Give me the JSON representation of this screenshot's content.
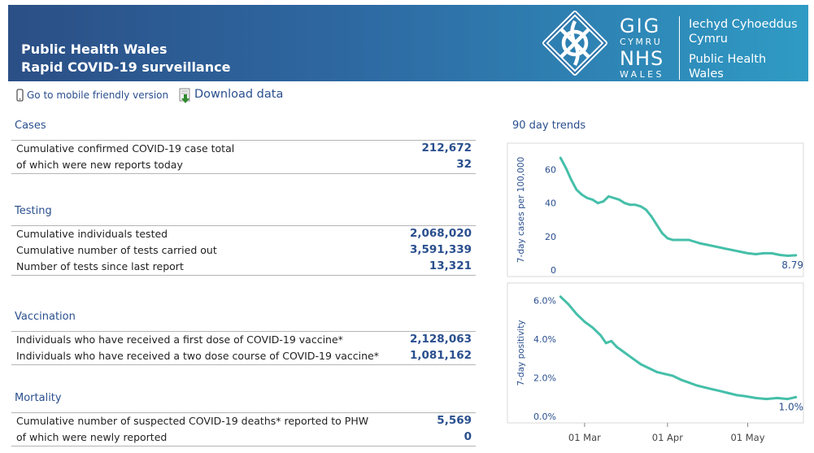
{
  "header": {
    "title_line1": "Public Health Wales",
    "title_line2": "Rapid COVID-19 surveillance",
    "logo": {
      "gig": "GIG",
      "cymru": "CYMRU",
      "nhs": "NHS",
      "wales": "WALES",
      "org_line1": "Iechyd Cyhoeddus",
      "org_line2": "Cymru",
      "org_line3": "Public Health",
      "org_line4": "Wales"
    }
  },
  "links": {
    "mobile": "Go to mobile friendly version",
    "download": "Download data"
  },
  "sections": {
    "cases": {
      "title": "Cases",
      "rows": [
        {
          "label": "Cumulative confirmed COVID-19 case total",
          "value": "212,672"
        },
        {
          "label": "of which were new reports today",
          "value": "32"
        }
      ]
    },
    "testing": {
      "title": "Testing",
      "rows": [
        {
          "label": "Cumulative individuals tested",
          "value": "2,068,020"
        },
        {
          "label": "Cumulative number of tests carried out",
          "value": "3,591,339"
        },
        {
          "label": "Number of tests since last report",
          "value": "13,321"
        }
      ]
    },
    "vaccination": {
      "title": "Vaccination",
      "rows": [
        {
          "label": "Individuals who have received a first dose of COVID-19 vaccine*",
          "value": "2,128,063"
        },
        {
          "label": "Individuals who have received a two dose course of COVID-19 vaccine*",
          "value": "1,081,162"
        }
      ]
    },
    "mortality": {
      "title": "Mortality",
      "rows": [
        {
          "label": "Cumulative number of suspected COVID-19 deaths* reported to PHW",
          "value": "5,569"
        },
        {
          "label": "of which were newly reported",
          "value": "0"
        }
      ]
    }
  },
  "trends": {
    "title": "90 day trends"
  },
  "colors": {
    "accent": "#2a4f8e",
    "series": "#45bfa9",
    "banner_left": "#2b4f86",
    "banner_right": "#2f9bc4"
  },
  "chart_data": [
    {
      "type": "line",
      "ylabel": "7-day cases per 100,000",
      "yticks": [
        "0",
        "20",
        "40",
        "60"
      ],
      "ylim": [
        0,
        70
      ],
      "x_domain": [
        "2021-02-19",
        "2021-05-20"
      ],
      "x_ticks": [
        "01 Mar",
        "01 Apr",
        "01 May"
      ],
      "end_label": "8.79",
      "grid": false,
      "series": [
        {
          "x": [
            "2021-02-20",
            "2021-02-22",
            "2021-02-24",
            "2021-02-26",
            "2021-02-28",
            "2021-03-02",
            "2021-03-04",
            "2021-03-06",
            "2021-03-08",
            "2021-03-10",
            "2021-03-12",
            "2021-03-14",
            "2021-03-16",
            "2021-03-18",
            "2021-03-20",
            "2021-03-22",
            "2021-03-24",
            "2021-03-26",
            "2021-03-28",
            "2021-03-30",
            "2021-04-01",
            "2021-04-03",
            "2021-04-05",
            "2021-04-07",
            "2021-04-09",
            "2021-04-11",
            "2021-04-13",
            "2021-04-16",
            "2021-04-19",
            "2021-04-22",
            "2021-04-25",
            "2021-04-28",
            "2021-05-01",
            "2021-05-04",
            "2021-05-07",
            "2021-05-10",
            "2021-05-13",
            "2021-05-16",
            "2021-05-19"
          ],
          "values": [
            67,
            61,
            54,
            48,
            45,
            43,
            42,
            40,
            41,
            44,
            43,
            42,
            40,
            39,
            39,
            38,
            36,
            32,
            27,
            22,
            19,
            18,
            18,
            18,
            18,
            17,
            16,
            15,
            14,
            13,
            12,
            11,
            10,
            9.5,
            10,
            10,
            9,
            8.5,
            8.79
          ]
        }
      ]
    },
    {
      "type": "line",
      "ylabel": "7-day positivity",
      "yticks": [
        "0.0%",
        "2.0%",
        "4.0%",
        "6.0%"
      ],
      "ylim": [
        0,
        6.4
      ],
      "x_domain": [
        "2021-02-19",
        "2021-05-20"
      ],
      "x_ticks": [
        "01 Mar",
        "01 Apr",
        "01 May"
      ],
      "end_label": "1.0%",
      "grid": false,
      "series": [
        {
          "x": [
            "2021-02-20",
            "2021-02-23",
            "2021-02-26",
            "2021-03-01",
            "2021-03-04",
            "2021-03-07",
            "2021-03-09",
            "2021-03-11",
            "2021-03-13",
            "2021-03-16",
            "2021-03-19",
            "2021-03-22",
            "2021-03-25",
            "2021-03-28",
            "2021-03-31",
            "2021-04-03",
            "2021-04-06",
            "2021-04-09",
            "2021-04-12",
            "2021-04-15",
            "2021-04-18",
            "2021-04-21",
            "2021-04-24",
            "2021-04-27",
            "2021-04-30",
            "2021-05-04",
            "2021-05-08",
            "2021-05-12",
            "2021-05-16",
            "2021-05-19"
          ],
          "values": [
            6.2,
            5.8,
            5.3,
            4.9,
            4.6,
            4.2,
            3.8,
            3.9,
            3.6,
            3.3,
            3.0,
            2.7,
            2.5,
            2.3,
            2.2,
            2.1,
            1.9,
            1.75,
            1.6,
            1.5,
            1.4,
            1.3,
            1.2,
            1.1,
            1.05,
            0.95,
            0.9,
            0.95,
            0.9,
            1.0
          ]
        }
      ]
    }
  ]
}
